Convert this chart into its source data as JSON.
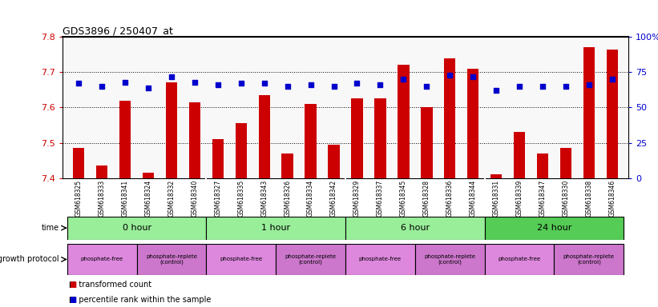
{
  "title": "GDS3896 / 250407_at",
  "samples": [
    "GSM618325",
    "GSM618333",
    "GSM618341",
    "GSM618324",
    "GSM618332",
    "GSM618340",
    "GSM618327",
    "GSM618335",
    "GSM618343",
    "GSM618326",
    "GSM618334",
    "GSM618342",
    "GSM618329",
    "GSM618337",
    "GSM618345",
    "GSM618328",
    "GSM618336",
    "GSM618344",
    "GSM618331",
    "GSM618339",
    "GSM618347",
    "GSM618330",
    "GSM618338",
    "GSM618346"
  ],
  "bar_values": [
    7.485,
    7.435,
    7.62,
    7.415,
    7.67,
    7.615,
    7.51,
    7.555,
    7.635,
    7.47,
    7.61,
    7.495,
    7.625,
    7.625,
    7.72,
    7.6,
    7.74,
    7.71,
    7.41,
    7.53,
    7.47,
    7.485,
    7.77,
    7.765
  ],
  "dot_values": [
    67,
    65,
    68,
    64,
    72,
    68,
    66,
    67,
    67,
    65,
    66,
    65,
    67,
    66,
    70,
    65,
    73,
    72,
    62,
    65,
    65,
    65,
    66,
    70
  ],
  "ylim_left": [
    7.4,
    7.8
  ],
  "ylim_right": [
    0,
    100
  ],
  "yticks_left": [
    7.4,
    7.5,
    7.6,
    7.7,
    7.8
  ],
  "yticks_right": [
    0,
    25,
    50,
    75,
    100
  ],
  "ytick_labels_right": [
    "0",
    "25",
    "50",
    "75",
    "100%"
  ],
  "grid_values": [
    7.5,
    7.6,
    7.7
  ],
  "bar_color": "#CC0000",
  "dot_color": "#0000CC",
  "bar_baseline": 7.4,
  "time_groups": [
    {
      "label": "0 hour",
      "start": 0,
      "end": 6,
      "color": "#99EE99"
    },
    {
      "label": "1 hour",
      "start": 6,
      "end": 12,
      "color": "#99EE99"
    },
    {
      "label": "6 hour",
      "start": 12,
      "end": 18,
      "color": "#99EE99"
    },
    {
      "label": "24 hour",
      "start": 18,
      "end": 24,
      "color": "#55CC55"
    }
  ],
  "protocol_groups": [
    {
      "label": "phosphate-free",
      "start": 0,
      "end": 3,
      "color": "#DD88DD"
    },
    {
      "label": "phosphate-replete\n(control)",
      "start": 3,
      "end": 6,
      "color": "#CC77CC"
    },
    {
      "label": "phosphate-free",
      "start": 6,
      "end": 9,
      "color": "#DD88DD"
    },
    {
      "label": "phosphate-replete\n(control)",
      "start": 9,
      "end": 12,
      "color": "#CC77CC"
    },
    {
      "label": "phosphate-free",
      "start": 12,
      "end": 15,
      "color": "#DD88DD"
    },
    {
      "label": "phosphate-replete\n(control)",
      "start": 15,
      "end": 18,
      "color": "#CC77CC"
    },
    {
      "label": "phosphate-free",
      "start": 18,
      "end": 21,
      "color": "#DD88DD"
    },
    {
      "label": "phosphate-replete\n(control)",
      "start": 21,
      "end": 24,
      "color": "#CC77CC"
    }
  ],
  "tick_label_color_left": "#CC0000",
  "tick_label_color_right": "#0000CC",
  "xlabel_bg_color": "#CCCCCC",
  "legend_items": [
    {
      "color": "#CC0000",
      "label": "transformed count"
    },
    {
      "color": "#0000CC",
      "label": "percentile rank within the sample"
    }
  ]
}
